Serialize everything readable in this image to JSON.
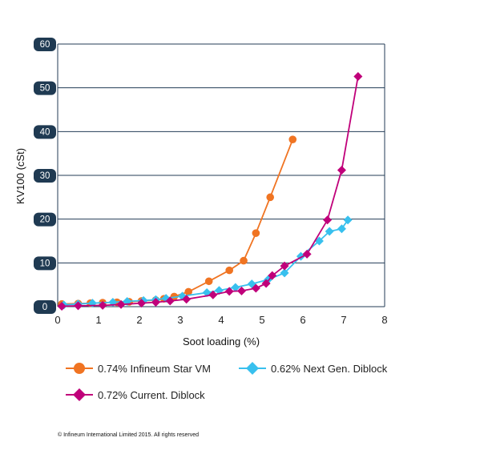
{
  "chart_data": {
    "type": "line",
    "title": "",
    "xlabel": "Soot loading (%)",
    "ylabel": "KV100 (cSt)",
    "xlim": [
      0,
      8
    ],
    "ylim": [
      0,
      60
    ],
    "xticks": [
      0,
      1,
      2,
      3,
      4,
      5,
      6,
      7,
      8
    ],
    "yticks": [
      0,
      10,
      20,
      30,
      40,
      50,
      60
    ],
    "grid": "horizontal",
    "legend_placement": "bottom",
    "series": [
      {
        "name": "0.74% Infineum Star VM",
        "color": "#f07422",
        "marker": "circle",
        "points": [
          [
            0.1,
            0.6
          ],
          [
            0.5,
            0.7
          ],
          [
            0.8,
            0.8
          ],
          [
            1.1,
            0.9
          ],
          [
            1.45,
            1.0
          ],
          [
            1.75,
            1.1
          ],
          [
            2.05,
            1.3
          ],
          [
            2.4,
            1.5
          ],
          [
            2.6,
            1.8
          ],
          [
            2.85,
            2.3
          ],
          [
            3.2,
            3.4
          ],
          [
            3.7,
            5.8
          ],
          [
            4.2,
            8.3
          ],
          [
            4.55,
            10.5
          ],
          [
            4.85,
            16.8
          ],
          [
            5.2,
            25.0
          ],
          [
            5.75,
            38.2
          ]
        ]
      },
      {
        "name": "0.62% Next Gen. Diblock",
        "color": "#38c0ee",
        "marker": "diamond",
        "points": [
          [
            0.15,
            0.4
          ],
          [
            0.5,
            0.6
          ],
          [
            0.85,
            0.8
          ],
          [
            1.35,
            1.0
          ],
          [
            1.7,
            1.2
          ],
          [
            2.1,
            1.4
          ],
          [
            2.4,
            1.6
          ],
          [
            2.65,
            1.9
          ],
          [
            3.05,
            2.4
          ],
          [
            3.65,
            3.2
          ],
          [
            3.95,
            3.7
          ],
          [
            4.35,
            4.4
          ],
          [
            4.75,
            5.2
          ],
          [
            5.15,
            6.2
          ],
          [
            5.55,
            7.7
          ],
          [
            5.95,
            11.5
          ],
          [
            6.4,
            15.0
          ],
          [
            6.65,
            17.2
          ],
          [
            6.95,
            17.8
          ],
          [
            7.1,
            19.8
          ]
        ]
      },
      {
        "name": "0.72% Current. Diblock",
        "color": "#c0007a",
        "marker": "diamond",
        "points": [
          [
            0.1,
            0.1
          ],
          [
            0.5,
            0.2
          ],
          [
            1.1,
            0.3
          ],
          [
            1.55,
            0.5
          ],
          [
            2.05,
            0.8
          ],
          [
            2.4,
            1.0
          ],
          [
            2.75,
            1.3
          ],
          [
            3.15,
            1.7
          ],
          [
            3.8,
            2.7
          ],
          [
            4.2,
            3.5
          ],
          [
            4.5,
            3.6
          ],
          [
            4.85,
            4.2
          ],
          [
            5.1,
            5.3
          ],
          [
            5.25,
            7.1
          ],
          [
            5.55,
            9.3
          ],
          [
            6.1,
            12.0
          ],
          [
            6.6,
            19.8
          ],
          [
            6.95,
            31.2
          ],
          [
            7.35,
            52.6
          ]
        ]
      }
    ]
  },
  "legend": {
    "items": [
      {
        "label": "0.74% Infineum Star VM",
        "color": "#f07422",
        "marker": "circle"
      },
      {
        "label": "0.62% Next Gen. Diblock",
        "color": "#38c0ee",
        "marker": "diamond"
      },
      {
        "label": "0.72% Current. Diblock",
        "color": "#c0007a",
        "marker": "diamond"
      }
    ]
  },
  "copyright": "© Infineum International Limited 2015. All rights reserved",
  "colors": {
    "tick_badge": "#1f3a52",
    "gridline": "#233b56",
    "axis": "#233b56"
  }
}
